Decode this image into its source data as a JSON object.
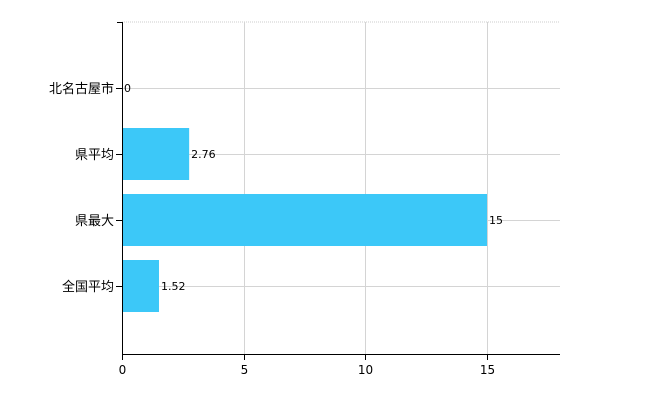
{
  "chart_data": {
    "type": "bar",
    "orientation": "horizontal",
    "categories": [
      "北名古屋市",
      "県平均",
      "県最大",
      "全国平均"
    ],
    "values": [
      0,
      2.76,
      15,
      1.52
    ],
    "value_labels": [
      "0",
      "2.76",
      "15",
      "1.52"
    ],
    "xlim": [
      0,
      18
    ],
    "xticks": [
      0,
      5,
      10,
      15
    ],
    "xtick_labels": [
      "0",
      "5",
      "10",
      "15"
    ],
    "grid": true,
    "legend": "none",
    "bar_color": "#3cc8f8",
    "title": "",
    "xlabel": "",
    "ylabel": ""
  }
}
